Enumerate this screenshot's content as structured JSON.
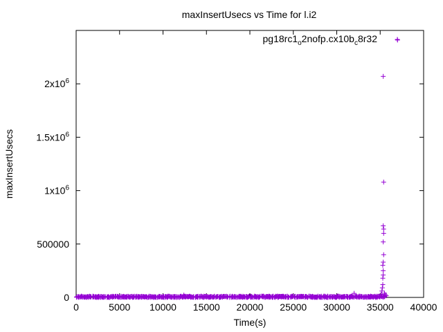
{
  "chart_data": {
    "type": "scatter",
    "title": "maxInsertUsecs vs Time for l.i2",
    "xlabel": "Time(s)",
    "ylabel": "maxInsertUsecs",
    "xlim": [
      0,
      40000
    ],
    "ylim": [
      0,
      2500000
    ],
    "x_ticks": [
      0,
      5000,
      10000,
      15000,
      20000,
      25000,
      30000,
      35000,
      40000
    ],
    "x_tick_labels": [
      "0",
      "5000",
      "10000",
      "15000",
      "20000",
      "25000",
      "30000",
      "35000",
      "40000"
    ],
    "y_ticks": [
      0,
      500000,
      1000000,
      1500000,
      2000000
    ],
    "y_tick_labels": [
      {
        "base": "0",
        "exp": ""
      },
      {
        "base": "500000",
        "exp": ""
      },
      {
        "base": "1x10",
        "exp": "6"
      },
      {
        "base": "1.5x10",
        "exp": "6"
      },
      {
        "base": "2x10",
        "exp": "6"
      }
    ],
    "grid": false,
    "legend_position": "top-right",
    "legend": {
      "parts": [
        {
          "text": "pg18rc1",
          "sub": false
        },
        {
          "text": "o",
          "sub": true
        },
        {
          "text": "2nofp.cx10b",
          "sub": false
        },
        {
          "text": "c",
          "sub": true
        },
        {
          "text": "8r32",
          "sub": false
        }
      ]
    },
    "series": [
      {
        "name": "pg18rc1_o2nofp.cx10b_c8r32",
        "color": "#9400d3",
        "marker": "plus",
        "baseline": {
          "x_start": 0,
          "x_end": 35400,
          "x_step": 150,
          "y_typical": 5000,
          "y_max_typical": 12000
        },
        "points": [
          {
            "x": 12400,
            "y": 22000
          },
          {
            "x": 32000,
            "y": 38000
          },
          {
            "x": 35100,
            "y": 30000
          },
          {
            "x": 35200,
            "y": 60000
          },
          {
            "x": 35250,
            "y": 90000
          },
          {
            "x": 35300,
            "y": 120000
          },
          {
            "x": 35300,
            "y": 180000
          },
          {
            "x": 35350,
            "y": 210000
          },
          {
            "x": 35350,
            "y": 250000
          },
          {
            "x": 35300,
            "y": 300000
          },
          {
            "x": 35350,
            "y": 330000
          },
          {
            "x": 35400,
            "y": 400000
          },
          {
            "x": 35350,
            "y": 520000
          },
          {
            "x": 35400,
            "y": 600000
          },
          {
            "x": 35400,
            "y": 640000
          },
          {
            "x": 35350,
            "y": 670000
          },
          {
            "x": 35400,
            "y": 1080000
          },
          {
            "x": 35350,
            "y": 2070000
          },
          {
            "x": 37000,
            "y": 2410000
          },
          {
            "x": 35500,
            "y": 40000
          },
          {
            "x": 35600,
            "y": 25000
          },
          {
            "x": 35700,
            "y": 15000
          }
        ]
      }
    ]
  }
}
